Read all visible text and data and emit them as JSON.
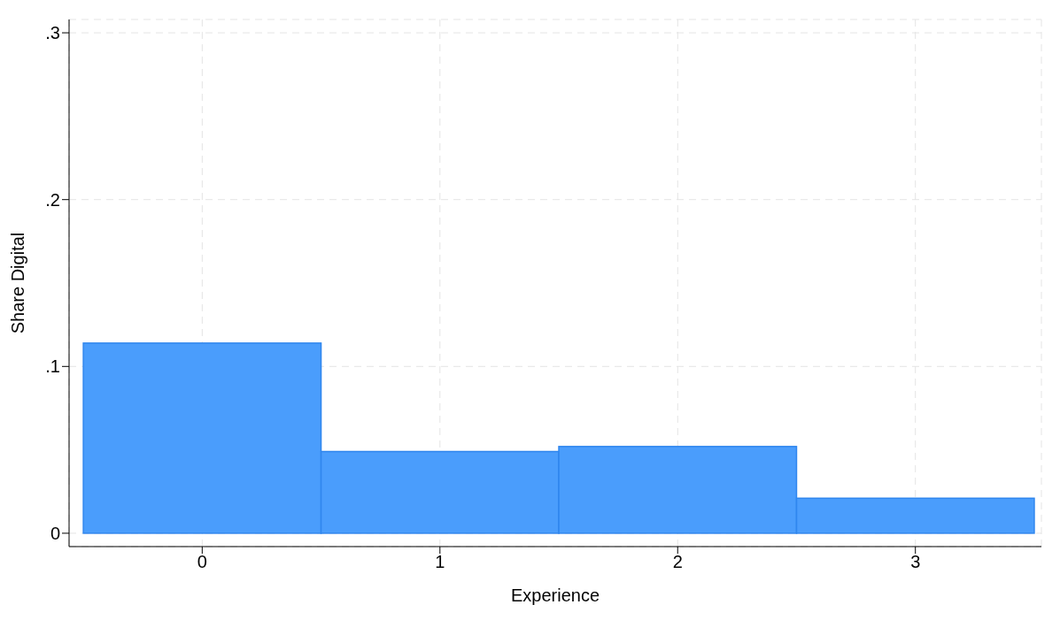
{
  "chart_data": {
    "type": "histogram",
    "xlabel": "Experience",
    "ylabel": "Share Digital",
    "bins": [
      -0.5,
      0.5,
      1.5,
      2.5,
      3.5
    ],
    "values": [
      0.114,
      0.049,
      0.052,
      0.021
    ],
    "color": "#4a9dfc",
    "xlim": [
      -0.56,
      3.53
    ],
    "xticks": [
      0,
      1,
      2,
      3
    ],
    "ylim": [
      -0.008,
      0.308
    ],
    "yticks": [
      {
        "value": 0,
        "label": "0"
      },
      {
        "value": 0.1,
        "label": ".1"
      },
      {
        "value": 0.2,
        "label": ".2"
      },
      {
        "value": 0.3,
        "label": ".3"
      }
    ],
    "grid": true
  }
}
